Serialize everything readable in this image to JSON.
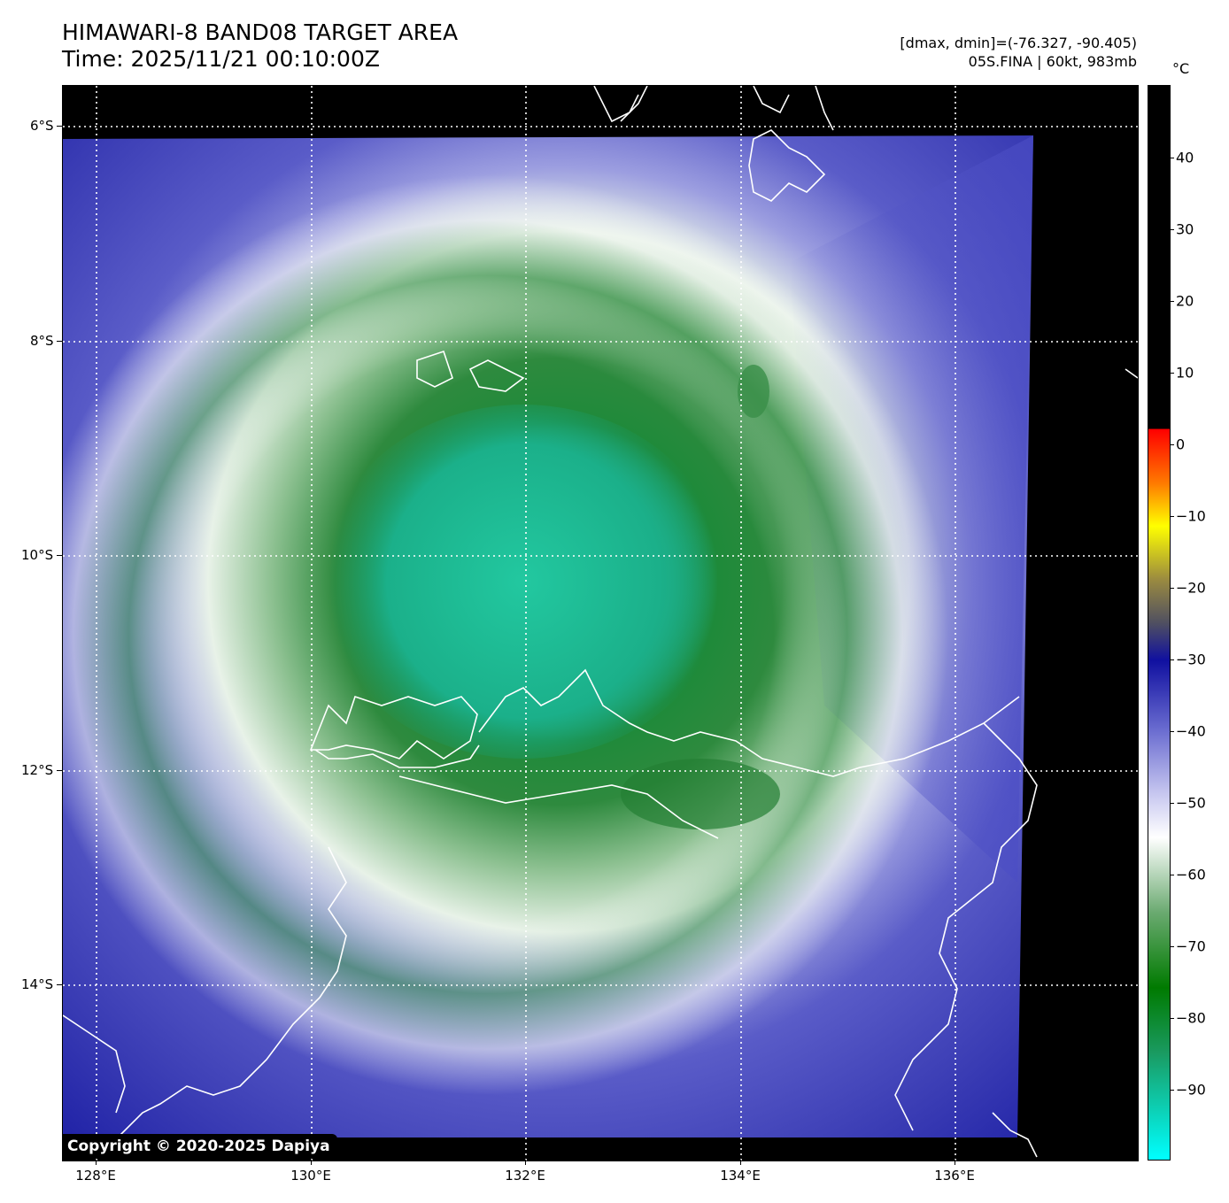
{
  "header": {
    "title_line1": "HIMAWARI-8 BAND08 TARGET AREA",
    "title_line2": "Time: 2025/11/21 00:10:00Z",
    "dminmax": "[dmax, dmin]=(-76.327, -90.405)",
    "storm": "05S.FINA | 60kt, 983mb"
  },
  "map": {
    "lon_ticks": [
      "128°E",
      "130°E",
      "132°E",
      "134°E",
      "136°E"
    ],
    "lat_ticks": [
      "6°S",
      "8°S",
      "10°S",
      "12°S",
      "14°S"
    ],
    "colors": {
      "background": "#000000",
      "cold_core": "#1fc29a",
      "deep_green": "#1d7a2a",
      "white_band": "#eaf3ea",
      "blue_field": "#5558c6",
      "coastline": "#ffffff",
      "grid": "#ffffff"
    },
    "copyright": "Copyright © 2020-2025 Dapiya"
  },
  "colorbar": {
    "unit": "°C",
    "labels": [
      "40",
      "30",
      "20",
      "10",
      "0",
      "−10",
      "−20",
      "−30",
      "−40",
      "−50",
      "−60",
      "−70",
      "−80",
      "−90"
    ]
  }
}
